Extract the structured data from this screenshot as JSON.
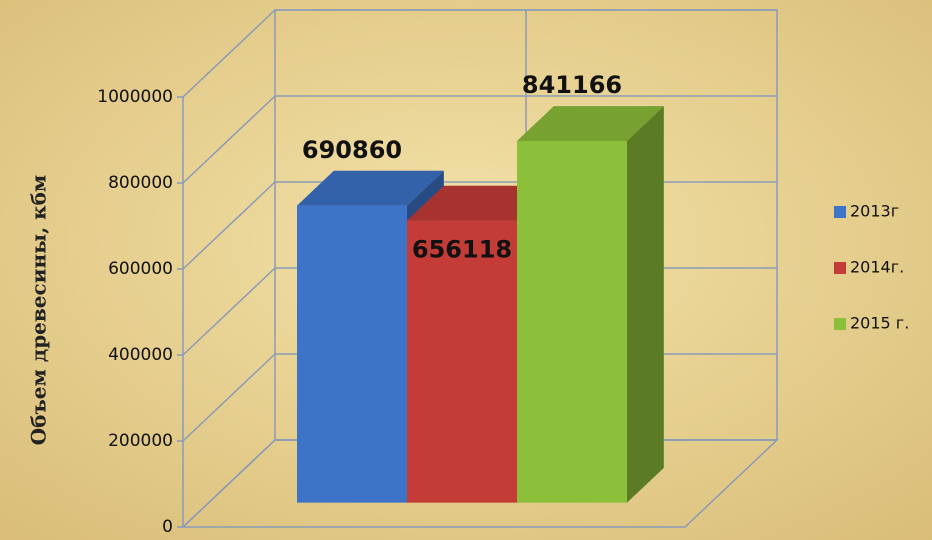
{
  "chart_data": {
    "type": "bar",
    "y_label": "Объем древесины, кбм",
    "categories": [
      null
    ],
    "series": [
      {
        "name": "2013г",
        "color": "#3d74c8",
        "values": [
          690860
        ]
      },
      {
        "name": "2014г.",
        "color": "#c43c38",
        "values": [
          656118
        ]
      },
      {
        "name": "2015 г.",
        "color": "#8cbf3a",
        "values": [
          841166
        ]
      }
    ],
    "ylim": [
      0,
      1000000
    ],
    "yticks": [
      0,
      200000,
      400000,
      600000,
      800000,
      1000000
    ],
    "grid": true,
    "legend": "right"
  }
}
